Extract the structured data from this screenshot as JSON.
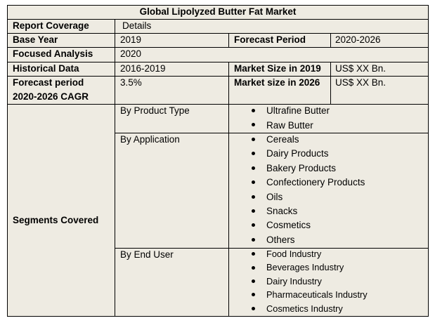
{
  "title": "Global Lipolyzed Butter Fat Market",
  "rows": {
    "report_coverage": {
      "label": "Report Coverage",
      "value": "Details"
    },
    "base_year": {
      "label": "Base Year",
      "value": "2019",
      "label2": "Forecast Period",
      "value2": "2020-2026"
    },
    "focused": {
      "label": "Focused Analysis",
      "value": "2020"
    },
    "historical": {
      "label": "Historical Data",
      "value": "2016-2019",
      "label2": "Market Size in 2019",
      "value2": "US$ XX Bn."
    },
    "forecast": {
      "label_line1": "Forecast period",
      "label_line2": "2020-2026 CAGR",
      "value": "3.5%",
      "label2": "Market size in 2026",
      "value2": "US$ XX Bn."
    }
  },
  "segments": {
    "label": "Segments Covered",
    "groups": [
      {
        "name": "By Product Type",
        "items": [
          "Ultrafine Butter",
          "Raw Butter"
        ]
      },
      {
        "name": "By Application",
        "items": [
          "Cereals",
          "Dairy Products",
          "Bakery Products",
          "Confectionery Products",
          "Oils",
          "Snacks",
          "Cosmetics",
          "Others"
        ]
      },
      {
        "name": "By End User",
        "items": [
          "Food Industry",
          "Beverages Industry",
          "Dairy Industry",
          "Pharmaceuticals Industry",
          "Cosmetics Industry"
        ]
      }
    ]
  }
}
